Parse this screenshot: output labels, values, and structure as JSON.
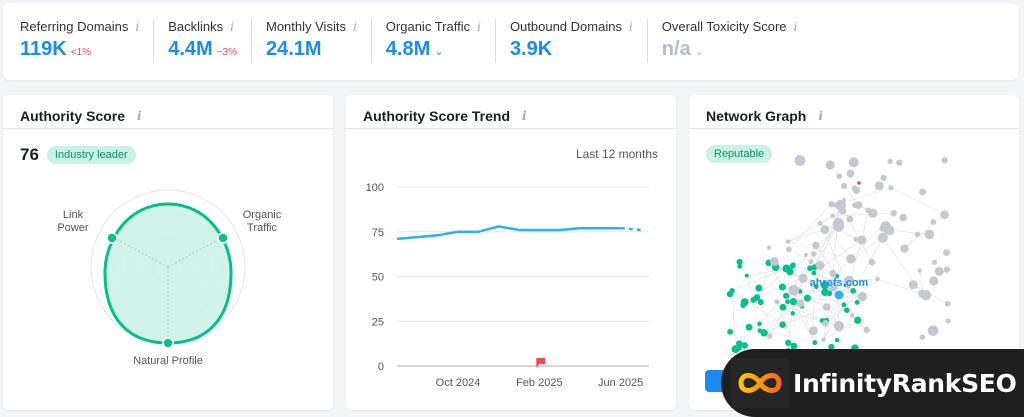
{
  "metrics": [
    {
      "label": "Referring Domains",
      "value": "119K",
      "delta": "<1%",
      "has_info": true
    },
    {
      "label": "Backlinks",
      "value": "4.4M",
      "delta": "−3%",
      "has_info": true
    },
    {
      "label": "Monthly Visits",
      "value": "24.1M",
      "delta": "",
      "has_info": true
    },
    {
      "label": "Organic Traffic",
      "value": "4.8M",
      "delta": "",
      "dropdown": true,
      "has_info": true
    },
    {
      "label": "Outbound Domains",
      "value": "3.9K",
      "delta": "",
      "has_info": true
    },
    {
      "label": "Overall Toxicity Score",
      "value": "n/a",
      "delta": "",
      "dropdown": true,
      "muted": true,
      "has_info": true
    }
  ],
  "authority": {
    "title": "Authority Score",
    "score": "76",
    "badge": "Industry leader",
    "axes": [
      "Link Power",
      "Organic Traffic",
      "Natural Profile"
    ],
    "axis_label_lines": [
      [
        "Link",
        "Power"
      ],
      [
        "Organic",
        "Traffic"
      ],
      [
        "Natural Profile"
      ]
    ],
    "color": "#00c08b",
    "fill": "#c9f1e6"
  },
  "trend": {
    "title": "Authority Score Trend",
    "period": "Last 12 months",
    "line_color": "#2bb0fa",
    "marker_color": "#f04b5c"
  },
  "network": {
    "title": "Network Graph",
    "badge": "Reputable",
    "center_label": "ahrefs.com",
    "button_label": "V"
  },
  "watermark": {
    "text": "InfinityRankSEO"
  },
  "chart_data": {
    "type": "line",
    "title": "Authority Score Trend",
    "subtitle": "Last 12 months",
    "xlabel": "",
    "ylabel": "",
    "ylim": [
      0,
      100
    ],
    "yticks": [
      0,
      25,
      50,
      75,
      100
    ],
    "xtick_labels": [
      "Oct 2024",
      "Feb 2025",
      "Jun 2025"
    ],
    "grid": true,
    "x": [
      "Jul 2024",
      "Aug 2024",
      "Sep 2024",
      "Oct 2024",
      "Nov 2024",
      "Dec 2024",
      "Jan 2025",
      "Feb 2025",
      "Mar 2025",
      "Apr 2025",
      "May 2025",
      "Jun 2025",
      "Jul 2025"
    ],
    "series": [
      {
        "name": "Authority Score",
        "values": [
          71,
          72,
          73,
          75,
          75,
          78,
          76,
          76,
          76,
          77,
          77,
          77,
          76
        ],
        "dashed_from_index": 11
      }
    ],
    "annotations": [
      {
        "x": "Feb 2025",
        "type": "flag",
        "label": ""
      }
    ]
  }
}
